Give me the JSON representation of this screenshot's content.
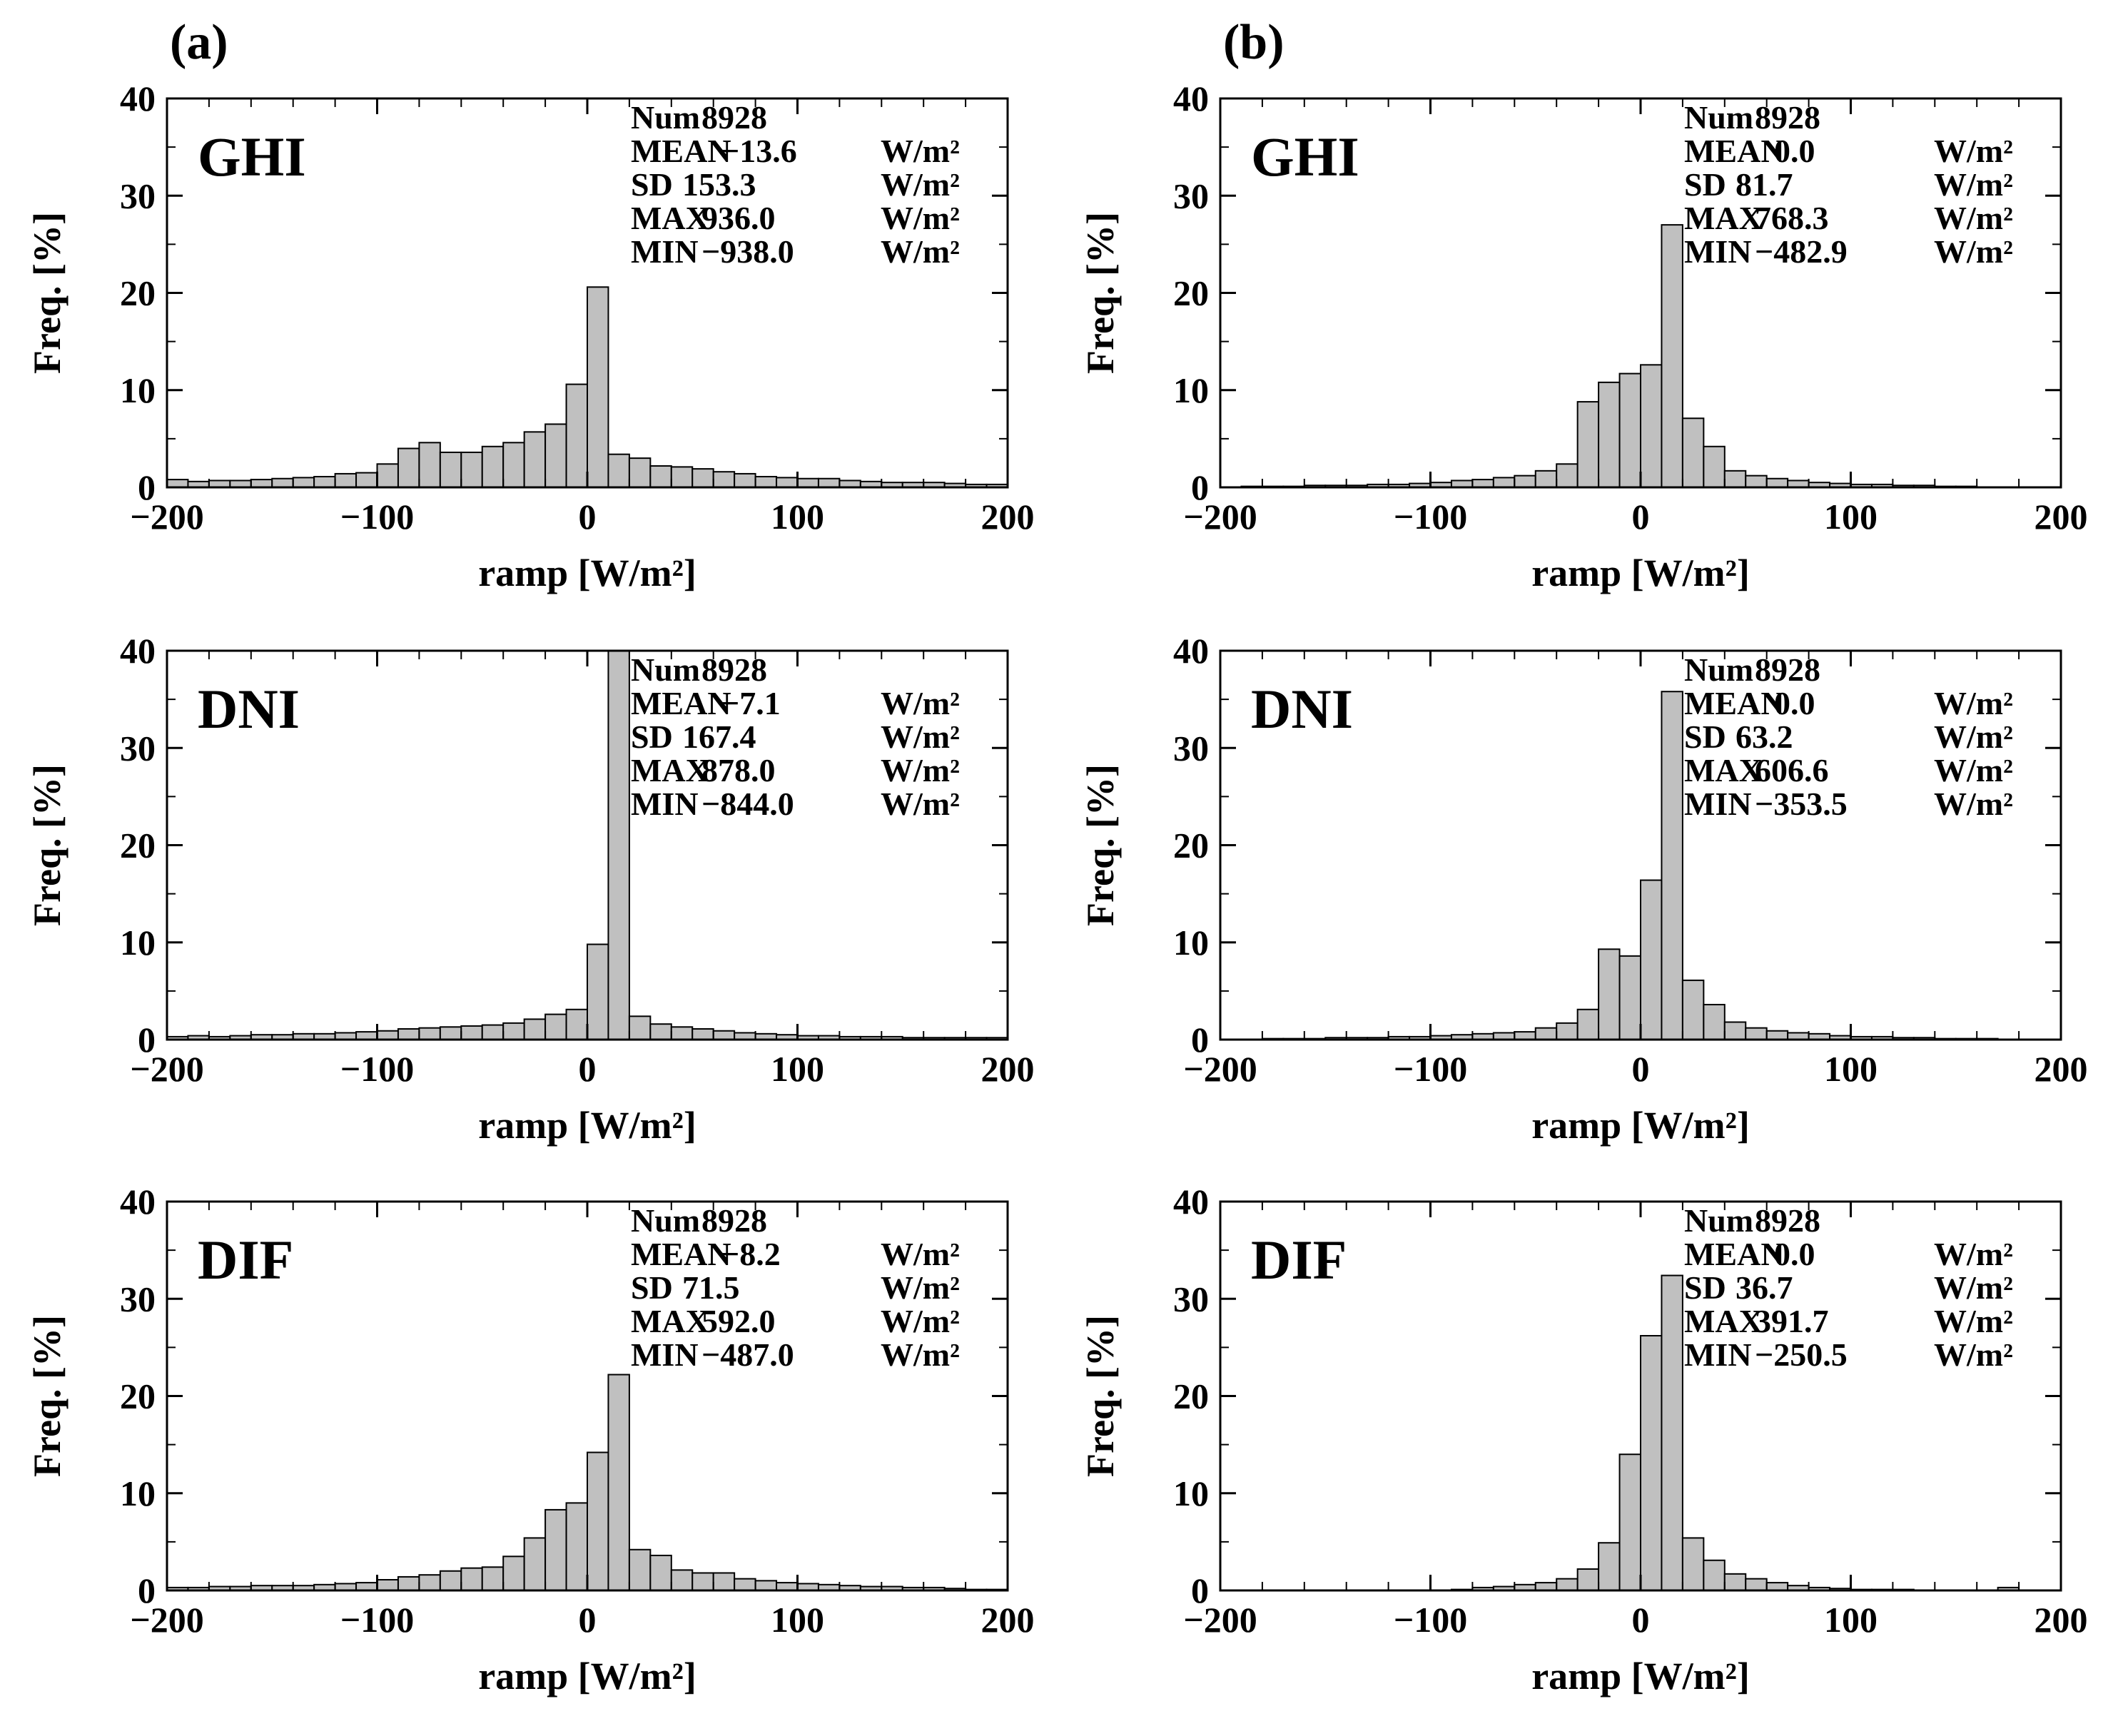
{
  "figure": {
    "panel_labels": [
      "(a)",
      "(b)"
    ]
  },
  "chart_data": [
    {
      "type": "bar",
      "column": "(a)",
      "label": "GHI",
      "xlabel": "ramp [W/m²]",
      "ylabel": "Freq. [%]",
      "xlim": [
        -200,
        200
      ],
      "ylim": [
        0,
        40
      ],
      "xticks": [
        -200,
        -100,
        0,
        100,
        200
      ],
      "yticks": [
        0,
        10,
        20,
        30,
        40
      ],
      "bin_width": 10,
      "bin_starts": [
        -200,
        -190,
        -180,
        -170,
        -160,
        -150,
        -140,
        -130,
        -120,
        -110,
        -100,
        -90,
        -80,
        -70,
        -60,
        -50,
        -40,
        -30,
        -20,
        -10,
        0,
        10,
        20,
        30,
        40,
        50,
        60,
        70,
        80,
        90,
        100,
        110,
        120,
        130,
        140,
        150,
        160,
        170,
        180,
        190
      ],
      "values": [
        0.8,
        0.6,
        0.7,
        0.7,
        0.8,
        0.9,
        1.0,
        1.1,
        1.4,
        1.5,
        2.4,
        4.0,
        4.6,
        3.6,
        3.6,
        4.2,
        4.6,
        5.7,
        6.5,
        10.6,
        20.6,
        3.4,
        3.0,
        2.2,
        2.1,
        1.9,
        1.6,
        1.4,
        1.1,
        1.0,
        0.9,
        0.9,
        0.7,
        0.6,
        0.5,
        0.5,
        0.5,
        0.4,
        0.3,
        0.3
      ],
      "stats": [
        {
          "name": "Num",
          "value": "8928",
          "unit": ""
        },
        {
          "name": "MEAN",
          "value": "−13.6",
          "unit": "W/m²"
        },
        {
          "name": "SD",
          "value": "153.3",
          "unit": "W/m²"
        },
        {
          "name": "MAX",
          "value": "936.0",
          "unit": "W/m²"
        },
        {
          "name": "MIN",
          "value": "−938.0",
          "unit": "W/m²"
        }
      ]
    },
    {
      "type": "bar",
      "column": "(b)",
      "label": "GHI",
      "xlabel": "ramp [W/m²]",
      "ylabel": "Freq. [%]",
      "xlim": [
        -200,
        200
      ],
      "ylim": [
        0,
        40
      ],
      "xticks": [
        -200,
        -100,
        0,
        100,
        200
      ],
      "yticks": [
        0,
        10,
        20,
        30,
        40
      ],
      "bin_width": 10,
      "bin_starts": [
        -200,
        -190,
        -180,
        -170,
        -160,
        -150,
        -140,
        -130,
        -120,
        -110,
        -100,
        -90,
        -80,
        -70,
        -60,
        -50,
        -40,
        -30,
        -20,
        -10,
        0,
        10,
        20,
        30,
        40,
        50,
        60,
        70,
        80,
        90,
        100,
        110,
        120,
        130,
        140,
        150,
        160,
        170,
        180,
        190
      ],
      "values": [
        0.0,
        0.1,
        0.1,
        0.1,
        0.2,
        0.2,
        0.2,
        0.3,
        0.3,
        0.4,
        0.5,
        0.7,
        0.8,
        1.0,
        1.2,
        1.7,
        2.4,
        8.8,
        10.8,
        11.7,
        12.6,
        27.0,
        7.1,
        4.2,
        1.7,
        1.2,
        0.9,
        0.7,
        0.5,
        0.4,
        0.3,
        0.3,
        0.2,
        0.2,
        0.1,
        0.1,
        0.0,
        0.0,
        0.0,
        0.0
      ],
      "stats": [
        {
          "name": "Num",
          "value": "8928",
          "unit": ""
        },
        {
          "name": "MEAN",
          "value": "0.0",
          "unit": "W/m²"
        },
        {
          "name": "SD",
          "value": "81.7",
          "unit": "W/m²"
        },
        {
          "name": "MAX",
          "value": "768.3",
          "unit": "W/m²"
        },
        {
          "name": "MIN",
          "value": "−482.9",
          "unit": "W/m²"
        }
      ]
    },
    {
      "type": "bar",
      "column": "(a)",
      "label": "DNI",
      "xlabel": "ramp [W/m²]",
      "ylabel": "Freq. [%]",
      "xlim": [
        -200,
        200
      ],
      "ylim": [
        0,
        40
      ],
      "xticks": [
        -200,
        -100,
        0,
        100,
        200
      ],
      "yticks": [
        0,
        10,
        20,
        30,
        40
      ],
      "bin_width": 10,
      "bin_starts": [
        -200,
        -190,
        -180,
        -170,
        -160,
        -150,
        -140,
        -130,
        -120,
        -110,
        -100,
        -90,
        -80,
        -70,
        -60,
        -50,
        -40,
        -30,
        -20,
        -10,
        0,
        10,
        20,
        30,
        40,
        50,
        60,
        70,
        80,
        90,
        100,
        110,
        120,
        130,
        140,
        150,
        160,
        170,
        180,
        190
      ],
      "values": [
        0.3,
        0.4,
        0.3,
        0.4,
        0.5,
        0.5,
        0.6,
        0.6,
        0.7,
        0.8,
        0.9,
        1.1,
        1.2,
        1.3,
        1.4,
        1.5,
        1.7,
        2.1,
        2.6,
        3.1,
        9.8,
        40.0,
        2.4,
        1.6,
        1.3,
        1.1,
        0.9,
        0.7,
        0.6,
        0.5,
        0.4,
        0.4,
        0.3,
        0.3,
        0.3,
        0.2,
        0.2,
        0.2,
        0.2,
        0.2
      ],
      "stats": [
        {
          "name": "Num",
          "value": "8928",
          "unit": ""
        },
        {
          "name": "MEAN",
          "value": "−7.1",
          "unit": "W/m²"
        },
        {
          "name": "SD",
          "value": "167.4",
          "unit": "W/m²"
        },
        {
          "name": "MAX",
          "value": "878.0",
          "unit": "W/m²"
        },
        {
          "name": "MIN",
          "value": "−844.0",
          "unit": "W/m²"
        }
      ]
    },
    {
      "type": "bar",
      "column": "(b)",
      "label": "DNI",
      "xlabel": "ramp [W/m²]",
      "ylabel": "Freq. [%]",
      "xlim": [
        -200,
        200
      ],
      "ylim": [
        0,
        40
      ],
      "xticks": [
        -200,
        -100,
        0,
        100,
        200
      ],
      "yticks": [
        0,
        10,
        20,
        30,
        40
      ],
      "bin_width": 10,
      "bin_starts": [
        -200,
        -190,
        -180,
        -170,
        -160,
        -150,
        -140,
        -130,
        -120,
        -110,
        -100,
        -90,
        -80,
        -70,
        -60,
        -50,
        -40,
        -30,
        -20,
        -10,
        0,
        10,
        20,
        30,
        40,
        50,
        60,
        70,
        80,
        90,
        100,
        110,
        120,
        130,
        140,
        150,
        160,
        170,
        180,
        190
      ],
      "values": [
        0.0,
        0.0,
        0.1,
        0.1,
        0.1,
        0.2,
        0.2,
        0.2,
        0.3,
        0.3,
        0.4,
        0.5,
        0.6,
        0.7,
        0.8,
        1.2,
        1.7,
        3.1,
        9.3,
        8.6,
        16.4,
        35.8,
        6.1,
        3.6,
        1.8,
        1.2,
        0.9,
        0.7,
        0.6,
        0.4,
        0.3,
        0.3,
        0.2,
        0.2,
        0.1,
        0.1,
        0.1,
        0.0,
        0.0,
        0.0
      ],
      "stats": [
        {
          "name": "Num",
          "value": "8928",
          "unit": ""
        },
        {
          "name": "MEAN",
          "value": "0.0",
          "unit": "W/m²"
        },
        {
          "name": "SD",
          "value": "63.2",
          "unit": "W/m²"
        },
        {
          "name": "MAX",
          "value": "606.6",
          "unit": "W/m²"
        },
        {
          "name": "MIN",
          "value": "−353.5",
          "unit": "W/m²"
        }
      ]
    },
    {
      "type": "bar",
      "column": "(a)",
      "label": "DIF",
      "xlabel": "ramp [W/m²]",
      "ylabel": "Freq. [%]",
      "xlim": [
        -200,
        200
      ],
      "ylim": [
        0,
        40
      ],
      "xticks": [
        -200,
        -100,
        0,
        100,
        200
      ],
      "yticks": [
        0,
        10,
        20,
        30,
        40
      ],
      "bin_width": 10,
      "bin_starts": [
        -200,
        -190,
        -180,
        -170,
        -160,
        -150,
        -140,
        -130,
        -120,
        -110,
        -100,
        -90,
        -80,
        -70,
        -60,
        -50,
        -40,
        -30,
        -20,
        -10,
        0,
        10,
        20,
        30,
        40,
        50,
        60,
        70,
        80,
        90,
        100,
        110,
        120,
        130,
        140,
        150,
        160,
        170,
        180,
        190
      ],
      "values": [
        0.3,
        0.3,
        0.4,
        0.4,
        0.5,
        0.5,
        0.5,
        0.6,
        0.7,
        0.8,
        1.1,
        1.4,
        1.6,
        2.0,
        2.3,
        2.4,
        3.5,
        5.4,
        8.3,
        9.0,
        14.2,
        22.2,
        4.2,
        3.6,
        2.1,
        1.8,
        1.8,
        1.2,
        1.0,
        0.8,
        0.7,
        0.6,
        0.5,
        0.4,
        0.4,
        0.3,
        0.3,
        0.2,
        0.1,
        0.1
      ],
      "stats": [
        {
          "name": "Num",
          "value": "8928",
          "unit": ""
        },
        {
          "name": "MEAN",
          "value": "−8.2",
          "unit": "W/m²"
        },
        {
          "name": "SD",
          "value": "71.5",
          "unit": "W/m²"
        },
        {
          "name": "MAX",
          "value": "592.0",
          "unit": "W/m²"
        },
        {
          "name": "MIN",
          "value": "−487.0",
          "unit": "W/m²"
        }
      ]
    },
    {
      "type": "bar",
      "column": "(b)",
      "label": "DIF",
      "xlabel": "ramp [W/m²]",
      "ylabel": "Freq. [%]",
      "xlim": [
        -200,
        200
      ],
      "ylim": [
        0,
        40
      ],
      "xticks": [
        -200,
        -100,
        0,
        100,
        200
      ],
      "yticks": [
        0,
        10,
        20,
        30,
        40
      ],
      "bin_width": 10,
      "bin_starts": [
        -200,
        -190,
        -180,
        -170,
        -160,
        -150,
        -140,
        -130,
        -120,
        -110,
        -100,
        -90,
        -80,
        -70,
        -60,
        -50,
        -40,
        -30,
        -20,
        -10,
        0,
        10,
        20,
        30,
        40,
        50,
        60,
        70,
        80,
        90,
        100,
        110,
        120,
        130,
        140,
        150,
        160,
        170,
        180,
        190
      ],
      "values": [
        0.0,
        0.0,
        0.0,
        0.0,
        0.0,
        0.0,
        0.0,
        0.0,
        0.0,
        0.0,
        0.0,
        0.1,
        0.3,
        0.4,
        0.6,
        0.8,
        1.2,
        2.2,
        4.9,
        14.0,
        26.2,
        32.4,
        5.4,
        3.1,
        1.7,
        1.2,
        0.8,
        0.5,
        0.3,
        0.2,
        0.1,
        0.1,
        0.1,
        0.0,
        0.0,
        0.0,
        0.0,
        0.3,
        0.0,
        0.0
      ],
      "stats": [
        {
          "name": "Num",
          "value": "8928",
          "unit": ""
        },
        {
          "name": "MEAN",
          "value": "0.0",
          "unit": "W/m²"
        },
        {
          "name": "SD",
          "value": "36.7",
          "unit": "W/m²"
        },
        {
          "name": "MAX",
          "value": "391.7",
          "unit": "W/m²"
        },
        {
          "name": "MIN",
          "value": "−250.5",
          "unit": "W/m²"
        }
      ]
    }
  ],
  "style": {
    "bar_fill": "#c0c0c0",
    "bar_stroke": "#000000",
    "axis_color": "#000000"
  }
}
